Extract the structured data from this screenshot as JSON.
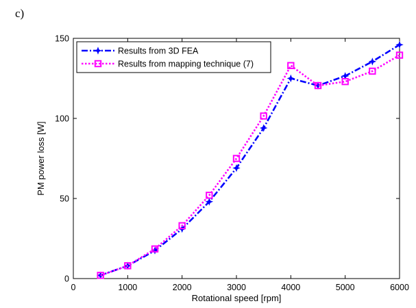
{
  "panel_label": "c)",
  "chart_data": {
    "type": "line",
    "title": "",
    "xlabel": "Rotational speed [rpm]",
    "ylabel": "PM power loss [W]",
    "xlim": [
      0,
      6000
    ],
    "ylim": [
      0,
      150
    ],
    "xticks": [
      0,
      1000,
      2000,
      3000,
      4000,
      5000,
      6000
    ],
    "yticks": [
      0,
      50,
      100,
      150
    ],
    "grid": false,
    "legend_position": "top-left",
    "series": [
      {
        "name": "Results from 3D FEA",
        "color": "#0000ff",
        "line_style": "dash-dot",
        "marker": "star",
        "x": [
          500,
          1000,
          1500,
          2000,
          2500,
          3000,
          3500,
          4000,
          4500,
          5000,
          5500,
          6000
        ],
        "y": [
          2,
          8,
          17.5,
          31,
          48,
          69,
          94,
          125,
          120.5,
          126.5,
          135.5,
          146
        ]
      },
      {
        "name": "Results from mapping technique (7)",
        "color": "#ff00ff",
        "line_style": "dotted",
        "marker": "square",
        "x": [
          500,
          1000,
          1500,
          2000,
          2500,
          3000,
          3500,
          4000,
          4500,
          5000,
          5500,
          6000
        ],
        "y": [
          2,
          8,
          18.5,
          33,
          52,
          75,
          101.5,
          133,
          120.5,
          123,
          129.5,
          139.5
        ]
      }
    ]
  }
}
